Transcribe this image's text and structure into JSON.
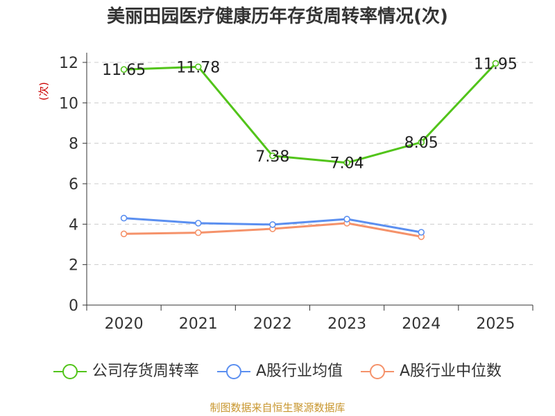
{
  "title": "美丽田园医疗健康历年存货周转率情况(次)",
  "source": "制图数据来自恒生聚源数据库",
  "chart_data": {
    "type": "line",
    "title": "美丽田园医疗健康历年存货周转率情况(次)",
    "ylabel": "(次)",
    "xlabel": "",
    "categories": [
      "2020",
      "2021",
      "2022",
      "2023",
      "2024",
      "2025"
    ],
    "ylim": [
      0,
      12
    ],
    "yticks": [
      "0",
      "2",
      "4",
      "6",
      "8",
      "10",
      "12"
    ],
    "grid": true,
    "legend_position": "bottom",
    "series": [
      {
        "name": "公司存货周转率",
        "color": "#52c41a",
        "values": [
          11.65,
          11.78,
          7.38,
          7.04,
          8.05,
          11.95
        ],
        "labels": [
          "11.65",
          "11.78",
          "7.38",
          "7.04",
          "8.05",
          "11.95"
        ]
      },
      {
        "name": "A股行业均值",
        "color": "#5b8ff0",
        "values": [
          4.3,
          4.05,
          3.98,
          4.25,
          3.6,
          null
        ],
        "labels": []
      },
      {
        "name": "A股行业中位数",
        "color": "#f5926a",
        "values": [
          3.52,
          3.58,
          3.77,
          4.05,
          3.38,
          null
        ],
        "labels": []
      }
    ]
  }
}
